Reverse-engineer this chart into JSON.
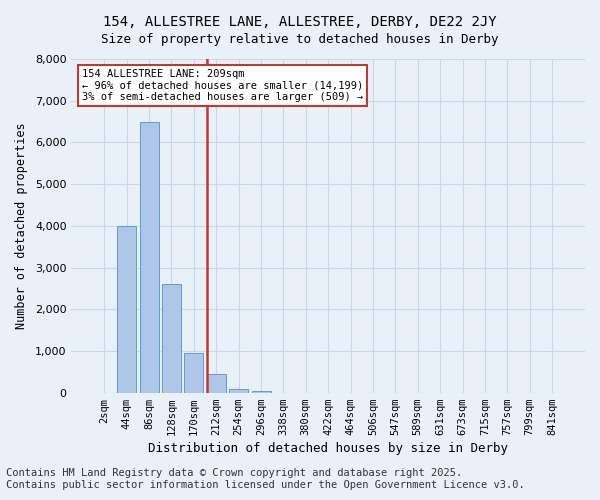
{
  "title_line1": "154, ALLESTREE LANE, ALLESTREE, DERBY, DE22 2JY",
  "title_line2": "Size of property relative to detached houses in Derby",
  "xlabel": "Distribution of detached houses by size in Derby",
  "ylabel": "Number of detached properties",
  "categories": [
    "2sqm",
    "44sqm",
    "86sqm",
    "128sqm",
    "170sqm",
    "212sqm",
    "254sqm",
    "296sqm",
    "338sqm",
    "380sqm",
    "422sqm",
    "464sqm",
    "506sqm",
    "547sqm",
    "589sqm",
    "631sqm",
    "673sqm",
    "715sqm",
    "757sqm",
    "799sqm",
    "841sqm"
  ],
  "values": [
    0,
    4000,
    6500,
    2600,
    950,
    450,
    100,
    30,
    0,
    0,
    0,
    0,
    0,
    0,
    0,
    0,
    0,
    0,
    0,
    0,
    0
  ],
  "bar_color": "#aec6e8",
  "bar_edge_color": "#5a9fd4",
  "vline_x": 4.575,
  "vline_color": "#c0392b",
  "annotation_text": "154 ALLESTREE LANE: 209sqm\n← 96% of detached houses are smaller (14,199)\n3% of semi-detached houses are larger (509) →",
  "annotation_box_color": "#c0392b",
  "annotation_text_color": "black",
  "ylim": [
    0,
    8000
  ],
  "yticks": [
    0,
    1000,
    2000,
    3000,
    4000,
    5000,
    6000,
    7000,
    8000
  ],
  "grid_color": "#c8d8e8",
  "background_color": "#eaf0f8",
  "footer_line1": "Contains HM Land Registry data © Crown copyright and database right 2025.",
  "footer_line2": "Contains public sector information licensed under the Open Government Licence v3.0.",
  "footer_fontsize": 7.5
}
